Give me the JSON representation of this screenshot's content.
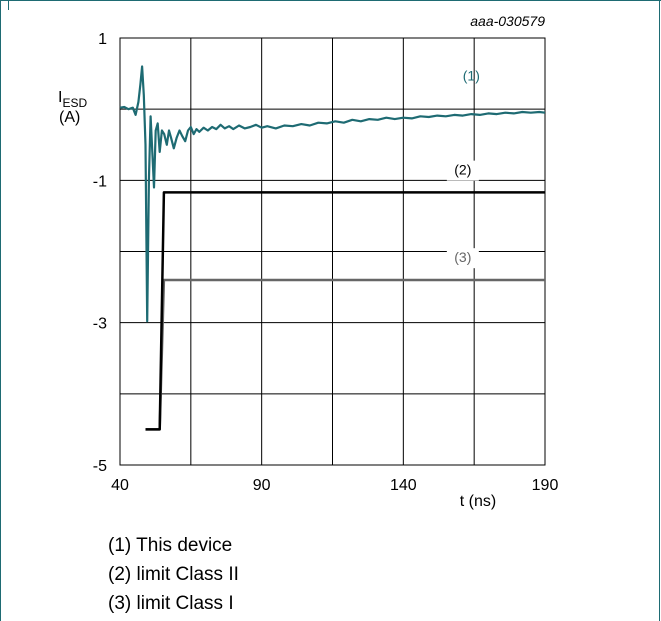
{
  "chart_data": {
    "type": "line",
    "figure_id": "aaa-030579",
    "ylabel_main": "I",
    "ylabel_sub": "ESD",
    "ylabel_unit": "(A)",
    "xlabel": "t (ns)",
    "xlim": [
      40,
      190
    ],
    "ylim": [
      -5,
      1
    ],
    "x_ticks": [
      40,
      90,
      140,
      190
    ],
    "x_tick_labels": [
      "40",
      "90",
      "140",
      "190"
    ],
    "x_grid": [
      40,
      65,
      90,
      115,
      140,
      165,
      190
    ],
    "y_ticks": [
      1,
      -1,
      -3,
      -5
    ],
    "y_tick_labels": [
      "1",
      "-1",
      "-3",
      "-5"
    ],
    "y_grid": [
      1,
      0,
      -1,
      -2,
      -3,
      -4,
      -5
    ],
    "grid": true,
    "series": [
      {
        "name": "(1)",
        "color": "#1e6b73",
        "points": [
          [
            40,
            0.02
          ],
          [
            41.5,
            0.03
          ],
          [
            43,
            0.0
          ],
          [
            44.5,
            0.02
          ],
          [
            45.5,
            -0.08
          ],
          [
            46.5,
            0.1
          ],
          [
            47.2,
            0.35
          ],
          [
            47.8,
            0.6
          ],
          [
            48.4,
            0.2
          ],
          [
            49,
            -0.5
          ],
          [
            49.6,
            -2.98
          ],
          [
            50.2,
            -1.0
          ],
          [
            50.8,
            -0.1
          ],
          [
            51.4,
            -0.6
          ],
          [
            52,
            -1.1
          ],
          [
            52.6,
            -0.3
          ],
          [
            53.3,
            -0.2
          ],
          [
            54,
            -0.6
          ],
          [
            54.8,
            -0.3
          ],
          [
            55.6,
            -0.35
          ],
          [
            56.5,
            -0.5
          ],
          [
            57.3,
            -0.3
          ],
          [
            58,
            -0.4
          ],
          [
            59,
            -0.55
          ],
          [
            60,
            -0.4
          ],
          [
            61,
            -0.3
          ],
          [
            62,
            -0.38
          ],
          [
            63,
            -0.45
          ],
          [
            64,
            -0.3
          ],
          [
            65,
            -0.25
          ],
          [
            66,
            -0.35
          ],
          [
            67,
            -0.28
          ],
          [
            68,
            -0.32
          ],
          [
            69.5,
            -0.26
          ],
          [
            71,
            -0.3
          ],
          [
            72.5,
            -0.25
          ],
          [
            74,
            -0.28
          ],
          [
            75.5,
            -0.22
          ],
          [
            77,
            -0.27
          ],
          [
            78.5,
            -0.24
          ],
          [
            80,
            -0.28
          ],
          [
            82,
            -0.23
          ],
          [
            84,
            -0.27
          ],
          [
            86,
            -0.25
          ],
          [
            88,
            -0.22
          ],
          [
            90,
            -0.26
          ],
          [
            92,
            -0.24
          ],
          [
            95,
            -0.27
          ],
          [
            98,
            -0.23
          ],
          [
            101,
            -0.24
          ],
          [
            104,
            -0.21
          ],
          [
            107,
            -0.23
          ],
          [
            110,
            -0.19
          ],
          [
            113,
            -0.2
          ],
          [
            116,
            -0.17
          ],
          [
            119,
            -0.19
          ],
          [
            122,
            -0.15
          ],
          [
            125,
            -0.17
          ],
          [
            128,
            -0.14
          ],
          [
            131,
            -0.15
          ],
          [
            134,
            -0.12
          ],
          [
            137,
            -0.14
          ],
          [
            140,
            -0.12
          ],
          [
            143,
            -0.13
          ],
          [
            146,
            -0.1
          ],
          [
            149,
            -0.11
          ],
          [
            152,
            -0.09
          ],
          [
            155,
            -0.1
          ],
          [
            158,
            -0.08
          ],
          [
            161,
            -0.09
          ],
          [
            164,
            -0.07
          ],
          [
            167,
            -0.08
          ],
          [
            170,
            -0.06
          ],
          [
            173,
            -0.07
          ],
          [
            176,
            -0.05
          ],
          [
            179,
            -0.06
          ],
          [
            182,
            -0.04
          ],
          [
            185,
            -0.05
          ],
          [
            188,
            -0.04
          ],
          [
            190,
            -0.05
          ]
        ]
      },
      {
        "name": "(2)",
        "color": "#000000",
        "points": [
          [
            49,
            -4.5
          ],
          [
            54,
            -4.5
          ],
          [
            55.5,
            -1.17
          ],
          [
            190,
            -1.17
          ]
        ]
      },
      {
        "name": "(3)",
        "color": "#666666",
        "points": [
          [
            49,
            -4.5
          ],
          [
            54,
            -4.5
          ],
          [
            55.5,
            -2.4
          ],
          [
            190,
            -2.4
          ]
        ]
      }
    ]
  },
  "legend": {
    "items": [
      "(1) This device",
      "(2) limit Class II",
      "(3) limit Class I"
    ]
  }
}
